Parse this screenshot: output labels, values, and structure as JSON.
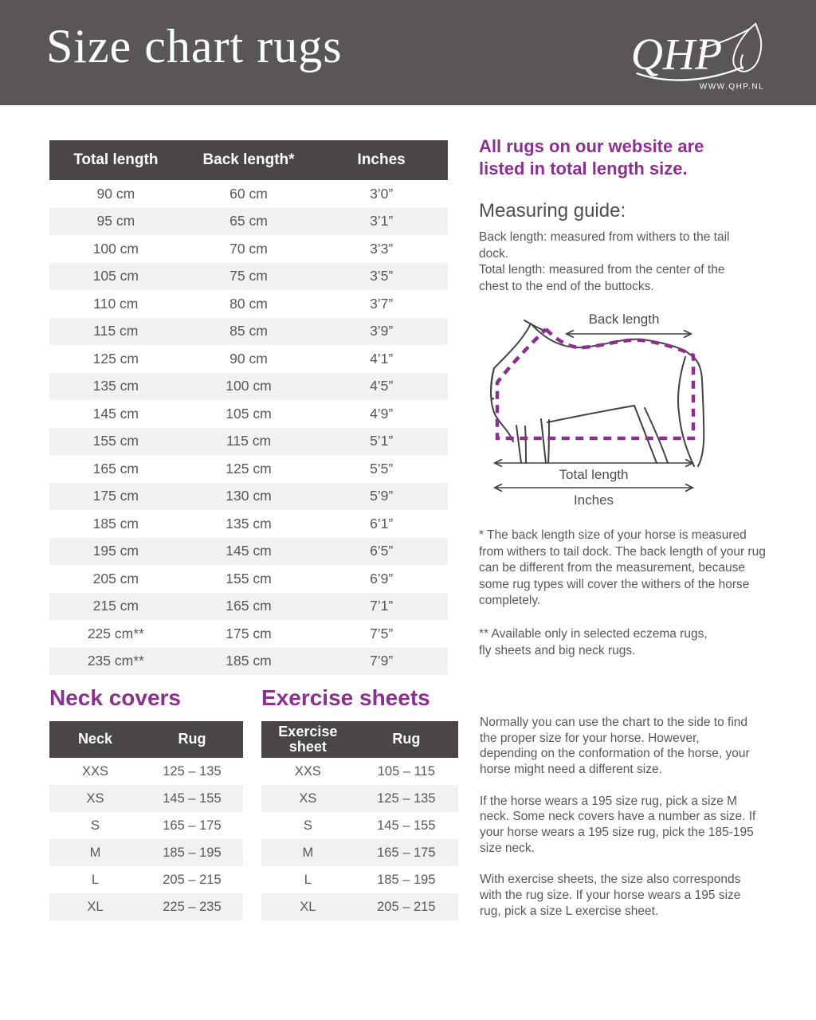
{
  "colors": {
    "masthead_bg": "#5a5559",
    "table_header_bg": "#4a4546",
    "row_stripe": "#f1f0f2",
    "accent_purple": "#8a3190",
    "body_text": "#58585a"
  },
  "header": {
    "title": "Size chart rugs",
    "logo_text": "QHP",
    "logo_url": "WWW.QHP.NL"
  },
  "size_table": {
    "columns": [
      "Total length",
      "Back length*",
      "Inches"
    ],
    "rows": [
      [
        "90 cm",
        "60 cm",
        "3’0”"
      ],
      [
        "95 cm",
        "65 cm",
        "3’1”"
      ],
      [
        "100 cm",
        "70 cm",
        "3’3”"
      ],
      [
        "105 cm",
        "75 cm",
        "3’5”"
      ],
      [
        "110 cm",
        "80 cm",
        "3’7”"
      ],
      [
        "115 cm",
        "85 cm",
        "3’9”"
      ],
      [
        "125 cm",
        "90 cm",
        "4’1”"
      ],
      [
        "135 cm",
        "100 cm",
        "4’5”"
      ],
      [
        "145 cm",
        "105 cm",
        "4’9”"
      ],
      [
        "155 cm",
        "115 cm",
        "5’1”"
      ],
      [
        "165 cm",
        "125 cm",
        "5’5”"
      ],
      [
        "175 cm",
        "130 cm",
        "5’9”"
      ],
      [
        "185 cm",
        "135 cm",
        "6’1”"
      ],
      [
        "195 cm",
        "145 cm",
        "6’5”"
      ],
      [
        "205 cm",
        "155 cm",
        "6’9”"
      ],
      [
        "215 cm",
        "165 cm",
        "7’1”"
      ],
      [
        "225 cm**",
        "175 cm",
        "7’5”"
      ],
      [
        "235 cm**",
        "185 cm",
        "7’9”"
      ]
    ]
  },
  "sidebar": {
    "intro_heading": "All rugs on our website are listed in total length size.",
    "guide_heading": "Measuring guide:",
    "guide_line1": "Back length: measured from withers to the tail dock.",
    "guide_line2": "Total length: measured from the center of the chest to the end of the buttocks.",
    "diagram": {
      "back_length_label": "Back length",
      "total_length_label": "Total length",
      "inches_label": "Inches"
    },
    "footnote_one": "* The back length size of your horse is measured from withers to tail dock. The back length of your rug can be different from the measurement, because some rug types will cover the withers of the horse completely.",
    "footnote_two": "** Available only in selected eczema rugs,\nfly sheets and big neck rugs."
  },
  "neck_covers": {
    "heading": "Neck covers",
    "columns": [
      "Neck",
      "Rug"
    ],
    "rows": [
      [
        "XXS",
        "125 – 135"
      ],
      [
        "XS",
        "145 – 155"
      ],
      [
        "S",
        "165 – 175"
      ],
      [
        "M",
        "185 – 195"
      ],
      [
        "L",
        "205 – 215"
      ],
      [
        "XL",
        "225 – 235"
      ]
    ]
  },
  "exercise_sheets": {
    "heading": "Exercise sheets",
    "columns": [
      "Exercise sheet",
      "Rug"
    ],
    "rows": [
      [
        "XXS",
        "105 – 115"
      ],
      [
        "XS",
        "125 – 135"
      ],
      [
        "S",
        "145 – 155"
      ],
      [
        "M",
        "165 – 175"
      ],
      [
        "L",
        "185 – 195"
      ],
      [
        "XL",
        "205 – 215"
      ]
    ]
  },
  "advice": {
    "paragraphs": [
      "Normally you can use the chart to the side to find the proper size for your horse.  However, depending on the conformation of the horse, your horse might need a different size.",
      "If the horse wears a 195 size rug, pick a size M neck. Some neck covers have a number as size. If your horse wears a 195 size rug, pick the 185-195 size neck.",
      "With exercise sheets, the size also corresponds with the rug size. If your horse wears a 195 size rug, pick a size L exercise sheet."
    ]
  }
}
